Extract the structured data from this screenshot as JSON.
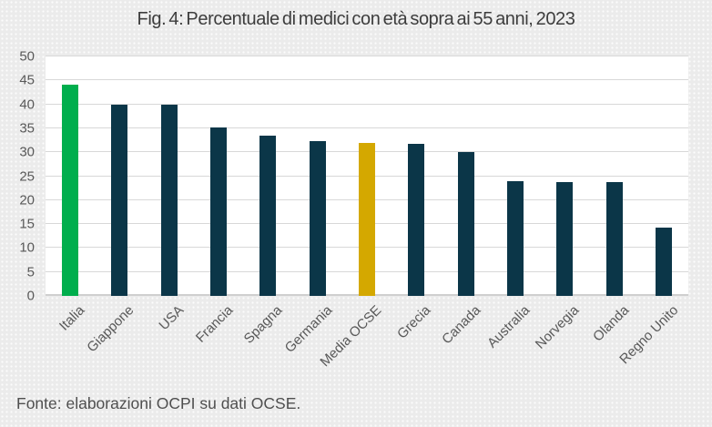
{
  "chart_data": {
    "type": "bar",
    "title": "Fig. 4: Percentuale di medici con età sopra ai 55 anni, 2023",
    "categories": [
      "Italia",
      "Giappone",
      "USA",
      "Francia",
      "Spagna",
      "Germania",
      "Media OCSE",
      "Grecia",
      "Canada",
      "Australia",
      "Norvegia",
      "Olanda",
      "Regno Unito"
    ],
    "values": [
      44.2,
      39.9,
      39.9,
      35.1,
      33.4,
      32.4,
      31.9,
      31.8,
      30.0,
      24.0,
      23.7,
      23.7,
      14.3
    ],
    "bar_roles": [
      "highlight",
      "default",
      "default",
      "default",
      "default",
      "default",
      "average",
      "default",
      "default",
      "default",
      "default",
      "default",
      "default"
    ],
    "colors": {
      "highlight": "#00ae4d",
      "default": "#0b3648",
      "average": "#d4a800",
      "grid": "#d8d8d8",
      "plot_background": "#ffffff",
      "page_background": "#ebebeb",
      "title_text": "#3d3d3d",
      "axis_text": "#595959"
    },
    "ylim": [
      0,
      50
    ],
    "ytick_step": 5,
    "ytick_labels": [
      "0",
      "5",
      "10",
      "15",
      "20",
      "25",
      "30",
      "35",
      "40",
      "45",
      "50"
    ],
    "grid": true,
    "legend_position": "none",
    "xlabel": "",
    "ylabel": ""
  },
  "footer": {
    "source": "Fonte: elaborazioni OCPI su dati OCSE."
  }
}
